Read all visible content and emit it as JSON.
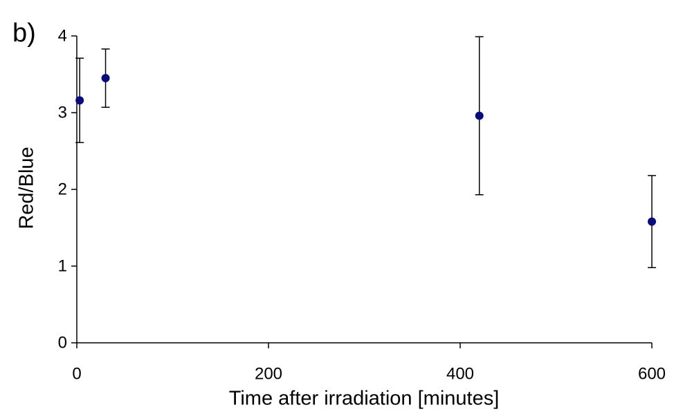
{
  "chart_data": {
    "type": "scatter",
    "panel_label": "b)",
    "x_label": "Time after irradiation [minutes]",
    "y_label": "Red/Blue",
    "series": [
      {
        "color": "#0a0a78",
        "x": [
          3,
          30,
          420,
          600
        ],
        "values": [
          3.16,
          3.45,
          2.96,
          1.58
        ],
        "errors": [
          0.55,
          0.38,
          1.03,
          0.6
        ]
      }
    ],
    "xlim": [
      0,
      600
    ],
    "ylim": [
      0,
      4
    ],
    "xticks": [
      0,
      200,
      400,
      600
    ],
    "yticks": [
      0,
      1,
      2,
      3,
      4
    ]
  }
}
